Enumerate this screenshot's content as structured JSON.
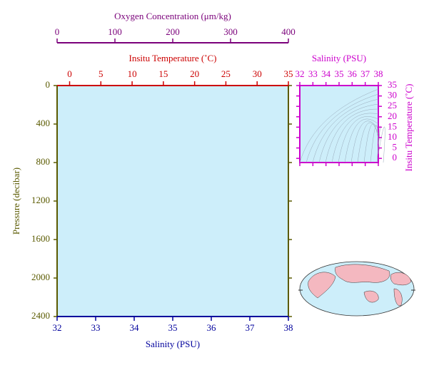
{
  "chart_data": [
    {
      "type": "profile",
      "background": "#cdeefa",
      "ylabel": "Pressure (decibar)",
      "ylabel_color": "#5a5a00",
      "ylim": [
        0,
        2400
      ],
      "y_inverted": true,
      "yticks": [
        0,
        400,
        800,
        1200,
        1600,
        2000,
        2400
      ],
      "x_axes": [
        {
          "label": "Oxygen Concentration (μm/kg)",
          "color": "#7a007a",
          "side": "outer-top",
          "xlim": [
            0,
            400
          ],
          "xticks": [
            0,
            100,
            200,
            300,
            400
          ]
        },
        {
          "label": "Insitu Temperature (˚C)",
          "color": "#cc0000",
          "side": "top",
          "xlim": [
            -2,
            35
          ],
          "xticks": [
            0,
            5,
            10,
            15,
            20,
            25,
            30,
            35
          ]
        },
        {
          "label": "Salinity (PSU)",
          "color": "#00009c",
          "side": "bottom",
          "xlim": [
            32,
            38
          ],
          "xticks": [
            32,
            33,
            34,
            35,
            36,
            37,
            38
          ]
        }
      ]
    },
    {
      "type": "ts",
      "color": "#cc00cc",
      "background": "#cdeefa",
      "xlabel": "Salinity (PSU)",
      "xlim": [
        32,
        38
      ],
      "xticks": [
        32,
        33,
        34,
        35,
        36,
        37,
        38
      ],
      "ylabel": "Insitu Temperature (˚C)",
      "ylim": [
        -2,
        35
      ],
      "yticks": [
        0,
        5,
        10,
        15,
        20,
        25,
        30,
        35
      ]
    }
  ]
}
